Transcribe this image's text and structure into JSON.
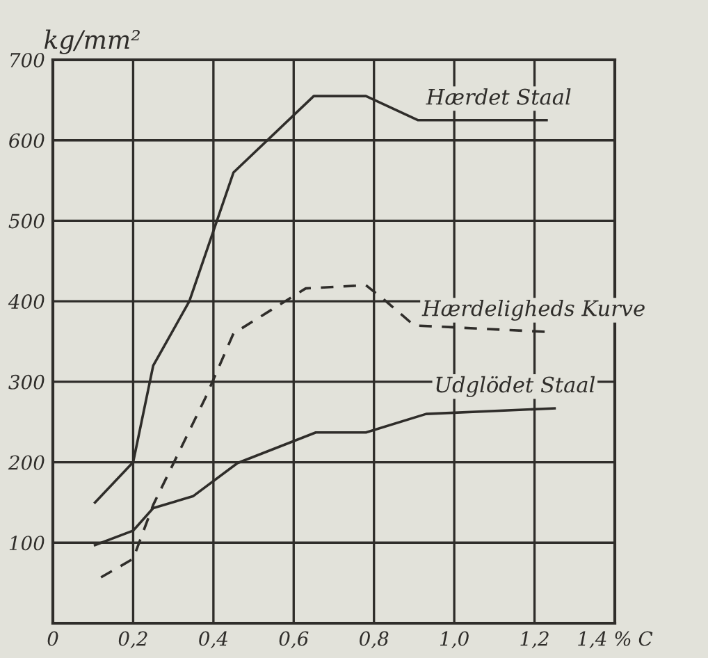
{
  "chart_data": {
    "type": "line",
    "ylabel": "kg/mm²",
    "series": [
      {
        "name": "Hærdet Staal",
        "color": "#2f2d2a",
        "line_style": "solid",
        "x": [
          0.105,
          0.2,
          0.25,
          0.34,
          0.45,
          0.65,
          0.78,
          0.91,
          1.23
        ],
        "values": [
          150,
          200,
          320,
          400,
          560,
          655,
          655,
          625,
          625
        ]
      },
      {
        "name": "Hærdeligheds Kurve",
        "color": "#2f2d2a",
        "line_style": "dashed",
        "x": [
          0.12,
          0.2,
          0.25,
          0.38,
          0.45,
          0.63,
          0.78,
          0.83,
          0.9,
          1.23
        ],
        "values": [
          57,
          80,
          147,
          280,
          360,
          416,
          420,
          400,
          370,
          362
        ]
      },
      {
        "name": "Udglödet Staal",
        "color": "#2f2d2a",
        "line_style": "solid",
        "x": [
          0.105,
          0.2,
          0.25,
          0.35,
          0.46,
          0.655,
          0.78,
          0.93,
          1.25
        ],
        "values": [
          97,
          115,
          143,
          158,
          199,
          237,
          237,
          260,
          267
        ]
      }
    ],
    "xlim": [
      0,
      1.4
    ],
    "ylim": [
      0,
      700
    ],
    "xticks": [
      0,
      {
        "value": 0.2,
        "label": "0,2"
      },
      {
        "value": 0.4,
        "label": "0,4"
      },
      {
        "value": 0.6,
        "label": "0,6"
      },
      {
        "value": 0.8,
        "label": "0,8"
      },
      {
        "value": 1.0,
        "label": "1,0"
      },
      {
        "value": 1.2,
        "label": "1,2"
      },
      {
        "value": 1.4,
        "label": "1,4 % C"
      }
    ],
    "yticks": [
      {
        "value": 0,
        "label": null
      },
      100,
      200,
      300,
      400,
      500,
      600,
      700
    ],
    "grid": true,
    "marker": "none"
  }
}
